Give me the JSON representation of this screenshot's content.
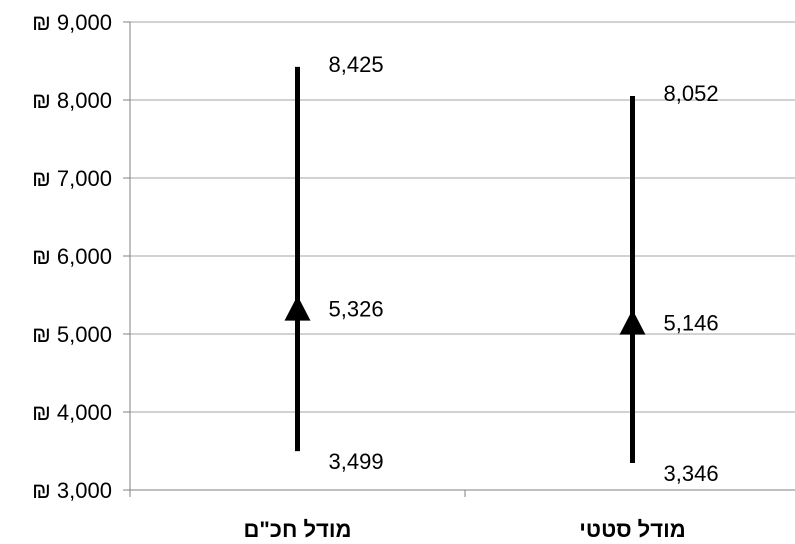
{
  "chart_data": {
    "type": "high-low-close",
    "categories": [
      "מודל חכ\"ם",
      "מודל סטטי"
    ],
    "series": [
      {
        "values": [
          8425,
          8052
        ]
      },
      {
        "values": [
          5326,
          5146
        ]
      },
      {
        "values": [
          3499,
          3346
        ]
      }
    ],
    "high": [
      8425,
      8052
    ],
    "mid": [
      5326,
      5146
    ],
    "low": [
      3499,
      3346
    ],
    "high_labels": [
      "8,425",
      "8,052"
    ],
    "mid_labels": [
      "5,326",
      "5,146"
    ],
    "low_labels": [
      "3,499",
      "3,346"
    ],
    "ylim": [
      3000,
      9000
    ],
    "yticks": [
      3000,
      4000,
      5000,
      6000,
      7000,
      8000,
      9000
    ],
    "ytick_labels": [
      "₪ 3,000",
      "₪ 4,000",
      "₪ 5,000",
      "₪ 6,000",
      "₪ 7,000",
      "₪ 8,000",
      "₪ 9,000"
    ],
    "grid": true,
    "colors": {
      "grid": "#a6a6a6",
      "axis": "#808080",
      "series": "#000000"
    }
  }
}
